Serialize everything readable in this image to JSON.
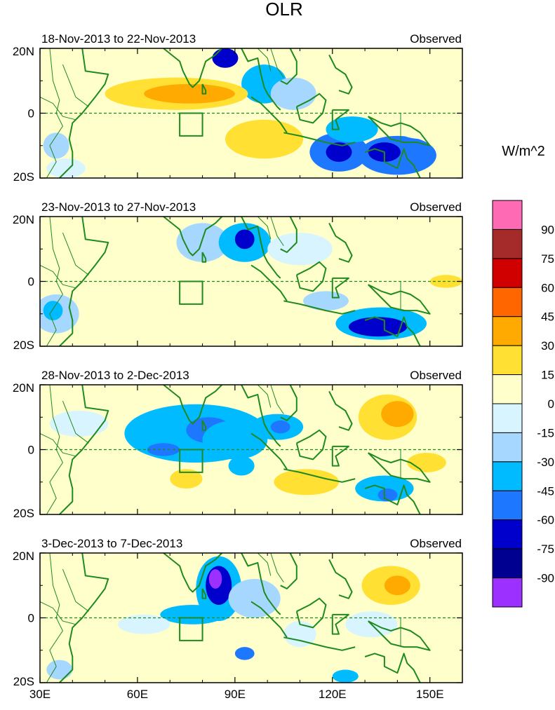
{
  "chart_data": {
    "type": "heatmap",
    "title": "OLR",
    "units": "W/m^2",
    "panels": [
      {
        "period": "18-Nov-2013 to 22-Nov-2013",
        "label": "Observed"
      },
      {
        "period": "23-Nov-2013 to 27-Nov-2013",
        "label": "Observed"
      },
      {
        "period": "28-Nov-2013 to 2-Dec-2013",
        "label": "Observed"
      },
      {
        "period": "3-Dec-2013 to 7-Dec-2013",
        "label": "Observed"
      }
    ],
    "x_range": [
      30,
      160
    ],
    "y_range": [
      -20,
      20
    ],
    "x_ticks": [
      {
        "value": 30,
        "label": "30E"
      },
      {
        "value": 60,
        "label": "60E"
      },
      {
        "value": 90,
        "label": "90E"
      },
      {
        "value": 120,
        "label": "120E"
      },
      {
        "value": 150,
        "label": "150E"
      }
    ],
    "y_ticks": [
      {
        "value": 20,
        "label": "20N"
      },
      {
        "value": 0,
        "label": "0"
      },
      {
        "value": -20,
        "label": "20S"
      }
    ],
    "box_region": {
      "lon": [
        73,
        80
      ],
      "lat": [
        -7,
        0
      ]
    },
    "colorbar": {
      "colors": [
        "#9b30ff",
        "#000090",
        "#0000cd",
        "#1e78ff",
        "#00bbff",
        "#a6d8ff",
        "#d8f4ff",
        "#ffffcc",
        "#ffe033",
        "#ffaa00",
        "#ff6600",
        "#d10000",
        "#a52a2a",
        "#ff6ab4"
      ],
      "labels": [
        "-90",
        "-75",
        "-60",
        "-45",
        "-30",
        "-15",
        "0",
        "15",
        "30",
        "45",
        "60",
        "75",
        "90"
      ]
    },
    "features": [
      [
        {
          "lon": 87,
          "lat": 17,
          "rx": 4,
          "ry": 3,
          "v": -75
        },
        {
          "lon": 99,
          "lat": 9,
          "rx": 7,
          "ry": 6,
          "v": -45
        },
        {
          "lon": 108,
          "lat": 6,
          "rx": 7,
          "ry": 5,
          "v": -30
        },
        {
          "lon": 122,
          "lat": -12,
          "rx": 9,
          "ry": 6,
          "v": -60
        },
        {
          "lon": 122,
          "lat": -12,
          "rx": 4,
          "ry": 3,
          "v": -75
        },
        {
          "lon": 140,
          "lat": -13,
          "rx": 12,
          "ry": 6,
          "v": -60
        },
        {
          "lon": 136,
          "lat": -12,
          "rx": 5,
          "ry": 3,
          "v": -75
        },
        {
          "lon": 126,
          "lat": -5,
          "rx": 8,
          "ry": 4,
          "v": -45
        },
        {
          "lon": 72,
          "lat": 6,
          "rx": 22,
          "ry": 5,
          "v": 30
        },
        {
          "lon": 76,
          "lat": 6,
          "rx": 14,
          "ry": 3,
          "v": 45
        },
        {
          "lon": 99,
          "lat": -8,
          "rx": 12,
          "ry": 6,
          "v": 30
        },
        {
          "lon": 145,
          "lat": 14,
          "rx": 16,
          "ry": 6,
          "v": 15
        },
        {
          "lon": 148,
          "lat": -4,
          "rx": 9,
          "ry": 4,
          "v": 15
        },
        {
          "lon": 35,
          "lat": -10,
          "rx": 4,
          "ry": 4,
          "v": -30
        },
        {
          "lon": 38,
          "lat": -17,
          "rx": 6,
          "ry": 3,
          "v": -15
        }
      ],
      [
        {
          "lon": 80,
          "lat": 12,
          "rx": 8,
          "ry": 6,
          "v": -30
        },
        {
          "lon": 93,
          "lat": 12,
          "rx": 8,
          "ry": 6,
          "v": -45
        },
        {
          "lon": 93,
          "lat": 13,
          "rx": 3,
          "ry": 3,
          "v": -75
        },
        {
          "lon": 110,
          "lat": 10,
          "rx": 10,
          "ry": 5,
          "v": -15
        },
        {
          "lon": 135,
          "lat": -13,
          "rx": 14,
          "ry": 5,
          "v": -45
        },
        {
          "lon": 134,
          "lat": -14,
          "rx": 9,
          "ry": 3,
          "v": -75
        },
        {
          "lon": 118,
          "lat": -6,
          "rx": 7,
          "ry": 3,
          "v": -30
        },
        {
          "lon": 35,
          "lat": -10,
          "rx": 7,
          "ry": 6,
          "v": -30
        },
        {
          "lon": 34,
          "lat": -9,
          "rx": 3,
          "ry": 3,
          "v": -45
        },
        {
          "lon": 90,
          "lat": -9,
          "rx": 20,
          "ry": 5,
          "v": 15
        },
        {
          "lon": 145,
          "lat": 10,
          "rx": 16,
          "ry": 8,
          "v": 15
        },
        {
          "lon": 155,
          "lat": 0,
          "rx": 5,
          "ry": 2,
          "v": 30
        },
        {
          "lon": 65,
          "lat": -7,
          "rx": 10,
          "ry": 5,
          "v": 15
        }
      ],
      [
        {
          "lon": 78,
          "lat": 5,
          "rx": 22,
          "ry": 9,
          "v": -45
        },
        {
          "lon": 82,
          "lat": 6,
          "rx": 7,
          "ry": 4,
          "v": -60
        },
        {
          "lon": 68,
          "lat": 0,
          "rx": 5,
          "ry": 2,
          "v": -60
        },
        {
          "lon": 90,
          "lat": 3,
          "rx": 10,
          "ry": 6,
          "v": -45
        },
        {
          "lon": 103,
          "lat": 7,
          "rx": 8,
          "ry": 4,
          "v": -45
        },
        {
          "lon": 104,
          "lat": 7,
          "rx": 3,
          "ry": 2,
          "v": -60
        },
        {
          "lon": 92,
          "lat": -5,
          "rx": 4,
          "ry": 3,
          "v": -45
        },
        {
          "lon": 136,
          "lat": -12,
          "rx": 9,
          "ry": 4,
          "v": -45
        },
        {
          "lon": 137,
          "lat": -14,
          "rx": 3,
          "ry": 2,
          "v": -60
        },
        {
          "lon": 42,
          "lat": 8,
          "rx": 9,
          "ry": 4,
          "v": -15
        },
        {
          "lon": 137,
          "lat": 10,
          "rx": 9,
          "ry": 7,
          "v": 30
        },
        {
          "lon": 140,
          "lat": 11,
          "rx": 5,
          "ry": 4,
          "v": 45
        },
        {
          "lon": 112,
          "lat": -10,
          "rx": 10,
          "ry": 4,
          "v": 30
        },
        {
          "lon": 54,
          "lat": -9,
          "rx": 10,
          "ry": 5,
          "v": 15
        },
        {
          "lon": 75,
          "lat": -9,
          "rx": 5,
          "ry": 3,
          "v": 30
        },
        {
          "lon": 149,
          "lat": -4,
          "rx": 6,
          "ry": 3,
          "v": 30
        }
      ],
      [
        {
          "lon": 85,
          "lat": 9,
          "rx": 7,
          "ry": 10,
          "v": -45
        },
        {
          "lon": 85,
          "lat": 10,
          "rx": 4,
          "ry": 6,
          "v": -75
        },
        {
          "lon": 84,
          "lat": 12,
          "rx": 2,
          "ry": 3,
          "v": -90
        },
        {
          "lon": 77,
          "lat": 1,
          "rx": 10,
          "ry": 3,
          "v": -45
        },
        {
          "lon": 96,
          "lat": 6,
          "rx": 8,
          "ry": 6,
          "v": -30
        },
        {
          "lon": 93,
          "lat": -11,
          "rx": 3,
          "ry": 2,
          "v": -60
        },
        {
          "lon": 124,
          "lat": -18,
          "rx": 4,
          "ry": 2,
          "v": -45
        },
        {
          "lon": 36,
          "lat": -16,
          "rx": 4,
          "ry": 3,
          "v": -30
        },
        {
          "lon": 138,
          "lat": 10,
          "rx": 9,
          "ry": 6,
          "v": 30
        },
        {
          "lon": 140,
          "lat": 10,
          "rx": 4,
          "ry": 3,
          "v": 45
        },
        {
          "lon": 80,
          "lat": -11,
          "rx": 5,
          "ry": 5,
          "v": 15
        },
        {
          "lon": 148,
          "lat": -14,
          "rx": 10,
          "ry": 4,
          "v": 15
        },
        {
          "lon": 132,
          "lat": -2,
          "rx": 8,
          "ry": 4,
          "v": -15
        },
        {
          "lon": 110,
          "lat": -5,
          "rx": 5,
          "ry": 4,
          "v": -15
        },
        {
          "lon": 62,
          "lat": -2,
          "rx": 8,
          "ry": 3,
          "v": -15
        }
      ]
    ],
    "coastlines": [
      [
        [
          43,
          20
        ],
        [
          44,
          13
        ],
        [
          51,
          12
        ],
        [
          50,
          9
        ],
        [
          47,
          5
        ],
        [
          43,
          0
        ],
        [
          40,
          -3
        ],
        [
          39,
          -8
        ],
        [
          40,
          -12
        ],
        [
          40,
          -16
        ],
        [
          36,
          -20
        ]
      ],
      [
        [
          68,
          20
        ],
        [
          73,
          16
        ],
        [
          74,
          13
        ],
        [
          76,
          9
        ],
        [
          77,
          8
        ],
        [
          79,
          10
        ],
        [
          80,
          13
        ],
        [
          81,
          16
        ],
        [
          84,
          18
        ],
        [
          86,
          20
        ]
      ],
      [
        [
          92,
          20
        ],
        [
          94,
          16
        ],
        [
          97,
          17
        ],
        [
          98,
          12
        ],
        [
          99,
          8
        ],
        [
          100,
          6
        ],
        [
          103,
          2
        ],
        [
          104,
          1
        ]
      ],
      [
        [
          104,
          10
        ],
        [
          106,
          9
        ],
        [
          109,
          12
        ],
        [
          109,
          16
        ],
        [
          107,
          20
        ]
      ],
      [
        [
          95,
          5
        ],
        [
          98,
          3
        ],
        [
          101,
          0
        ],
        [
          104,
          -3
        ],
        [
          106,
          -6
        ]
      ],
      [
        [
          105,
          -6
        ],
        [
          110,
          -7
        ],
        [
          114,
          -8
        ],
        [
          118,
          -9
        ],
        [
          123,
          -10
        ],
        [
          127,
          -9
        ]
      ],
      [
        [
          109,
          2
        ],
        [
          110,
          -2
        ],
        [
          114,
          -3
        ],
        [
          117,
          0
        ],
        [
          118,
          4
        ],
        [
          116,
          6
        ],
        [
          113,
          4
        ],
        [
          109,
          2
        ]
      ],
      [
        [
          120,
          1
        ],
        [
          122,
          1
        ],
        [
          125,
          1
        ],
        [
          121,
          -2
        ],
        [
          122,
          -5
        ],
        [
          120,
          -5
        ],
        [
          120,
          1
        ]
      ],
      [
        [
          119,
          18
        ],
        [
          121,
          14
        ],
        [
          124,
          12
        ],
        [
          126,
          8
        ],
        [
          125,
          6
        ],
        [
          122,
          7
        ]
      ],
      [
        [
          131,
          -1
        ],
        [
          135,
          -3
        ],
        [
          138,
          -4
        ],
        [
          141,
          -3
        ],
        [
          144,
          -4
        ],
        [
          147,
          -6
        ],
        [
          150,
          -10
        ],
        [
          146,
          -9
        ],
        [
          142,
          -9
        ],
        [
          138,
          -8
        ],
        [
          134,
          -4
        ],
        [
          131,
          -1
        ]
      ],
      [
        [
          130,
          -12
        ],
        [
          133,
          -11
        ],
        [
          136,
          -12
        ],
        [
          136,
          -15
        ],
        [
          140,
          -17
        ],
        [
          142,
          -11
        ],
        [
          143,
          -14
        ],
        [
          145,
          -16
        ],
        [
          147,
          -20
        ]
      ],
      [
        [
          80,
          9
        ],
        [
          81,
          7
        ],
        [
          81,
          6
        ],
        [
          80,
          6
        ],
        [
          80,
          9
        ]
      ]
    ],
    "borders": [
      [
        [
          33,
          20
        ],
        [
          34,
          10
        ],
        [
          36,
          4
        ],
        [
          35,
          0
        ],
        [
          37,
          -4
        ],
        [
          33,
          -10
        ],
        [
          35,
          -15
        ],
        [
          32,
          -20
        ]
      ],
      [
        [
          37,
          15
        ],
        [
          39,
          10
        ],
        [
          41,
          5
        ],
        [
          45,
          2
        ]
      ],
      [
        [
          30,
          5
        ],
        [
          34,
          3
        ],
        [
          37,
          -1
        ],
        [
          41,
          -2
        ]
      ],
      [
        [
          101,
          20
        ],
        [
          103,
          14
        ],
        [
          105,
          11
        ]
      ],
      [
        [
          97,
          20
        ],
        [
          100,
          17
        ],
        [
          101,
          13
        ]
      ],
      [
        [
          141,
          0
        ],
        [
          141,
          -9
        ]
      ]
    ]
  }
}
